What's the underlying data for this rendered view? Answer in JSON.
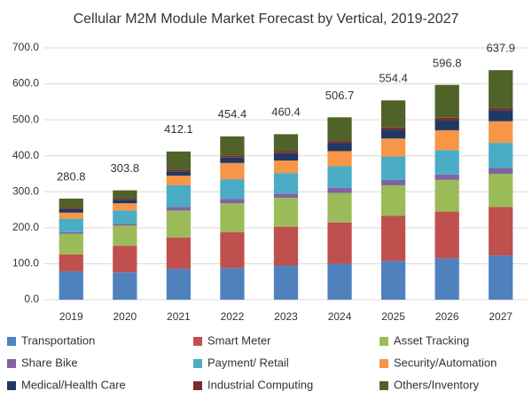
{
  "chart_data": {
    "type": "stacked_bar",
    "title": "Cellular M2M Module Market Forecast by Vertical, 2019-2027",
    "categories": [
      "2019",
      "2020",
      "2021",
      "2022",
      "2023",
      "2024",
      "2025",
      "2026",
      "2027"
    ],
    "series": [
      {
        "name": "Transportation",
        "color": "#4f81bd",
        "values": [
          79,
          76,
          86,
          88,
          95,
          100,
          108,
          115,
          123
        ]
      },
      {
        "name": "Smart Meter",
        "color": "#c0504d",
        "values": [
          47,
          74,
          87,
          100,
          108,
          115,
          125,
          130,
          135
        ]
      },
      {
        "name": "Asset Tracking",
        "color": "#9bbb59",
        "values": [
          57,
          56,
          75,
          80,
          80,
          82,
          85,
          88,
          92
        ]
      },
      {
        "name": "Share Bike",
        "color": "#8064a2",
        "values": [
          5,
          5,
          10,
          12,
          12,
          14,
          15,
          15,
          16
        ]
      },
      {
        "name": "Payment/ Retail",
        "color": "#4bacc6",
        "values": [
          37,
          37,
          60,
          55,
          57,
          60,
          65,
          68,
          70
        ]
      },
      {
        "name": "Security/Automation",
        "color": "#f79646",
        "values": [
          17,
          20,
          27,
          45,
          35,
          42,
          50,
          55,
          60
        ]
      },
      {
        "name": "Medical/Health Care",
        "color": "#1f3864",
        "values": [
          10,
          10,
          12,
          15,
          20,
          22,
          25,
          28,
          30
        ]
      },
      {
        "name": "Industrial Computing",
        "color": "#7b2c2c",
        "values": [
          5,
          4,
          5,
          6,
          6,
          6,
          6,
          7,
          7
        ]
      },
      {
        "name": "Others/Inventory",
        "color": "#4f6228",
        "values": [
          24,
          22,
          50,
          53,
          47,
          66,
          75,
          91,
          105
        ]
      }
    ],
    "totals": [
      280.8,
      303.8,
      412.1,
      454.4,
      460.4,
      506.7,
      554.4,
      596.8,
      637.9
    ],
    "ylim": [
      0,
      700
    ],
    "yticks": [
      {
        "value": 0,
        "label": "0.0"
      },
      {
        "value": 100,
        "label": "100.0"
      },
      {
        "value": 200,
        "label": "200.0"
      },
      {
        "value": 300,
        "label": "300.0"
      },
      {
        "value": 400,
        "label": "400.0"
      },
      {
        "value": 500,
        "label": "500.0"
      },
      {
        "value": 600,
        "label": "600.0"
      },
      {
        "value": 700,
        "label": "700.0"
      }
    ],
    "grid": true
  }
}
